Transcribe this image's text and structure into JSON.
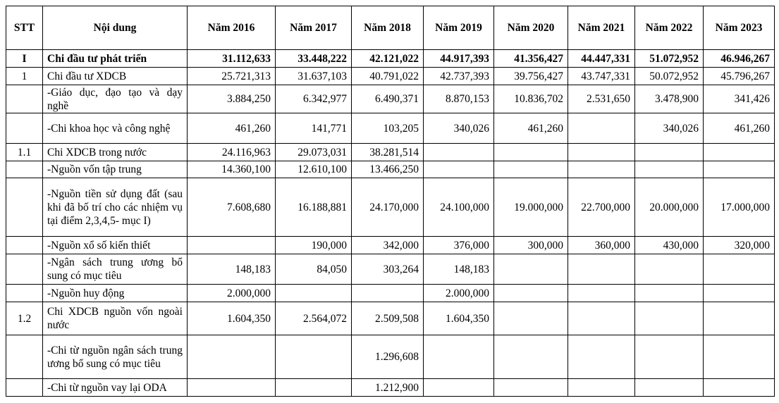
{
  "table": {
    "header": [
      "STT",
      "Nội dung",
      "Năm 2016",
      "Năm 2017",
      "Năm 2018",
      "Năm 2019",
      "Năm 2020",
      "Năm 2021",
      "Năm 2022",
      "Năm 2023"
    ],
    "rows": [
      [
        "I",
        "Chi đầu tư phát triển",
        "31.112,633",
        "33.448,222",
        "42.121,022",
        "44.917,393",
        "41.356,427",
        "44.447,331",
        "51.072,952",
        "46.946,267"
      ],
      [
        "1",
        "Chi đầu tư XDCB",
        "25.721,313",
        "31.637,103",
        "40.791,022",
        "42.737,393",
        "39.756,427",
        "43.747,331",
        "50.072,952",
        "45.796,267"
      ],
      [
        null,
        "-Giáo dục, đạo tạo và dạy nghề",
        "3.884,250",
        "6.342,977",
        "6.490,371",
        "8.870,153",
        "10.836,702",
        "2.531,650",
        "3.478,900",
        "341,426"
      ],
      [
        null,
        "-Chi khoa học và công nghệ",
        "461,260",
        "141,771",
        "103,205",
        "340,026",
        "461,260",
        null,
        "340,026",
        "461,260"
      ],
      [
        "1.1",
        "Chi XDCB trong nước",
        "24.116,963",
        "29.073,031",
        "38.281,514",
        null,
        null,
        null,
        null,
        null
      ],
      [
        null,
        "-Nguồn vốn tập trung",
        "14.360,100",
        "12.610,100",
        "13.466,250",
        null,
        null,
        null,
        null,
        null
      ],
      [
        null,
        "-Nguồn tiền sử dụng đất (sau khi đã bố trí cho các nhiệm vụ tại điểm 2,3,4,5- mục I)",
        "7.608,680",
        "16.188,881",
        "24.170,000",
        "24.100,000",
        "19.000,000",
        "22.700,000",
        "20.000,000",
        "17.000,000"
      ],
      [
        null,
        "-Nguồn xổ số kiến thiết",
        null,
        "190,000",
        "342,000",
        "376,000",
        "300,000",
        "360,000",
        "430,000",
        "320,000"
      ],
      [
        null,
        "-Ngân sách trung ương bổ sung có mục tiêu",
        "148,183",
        "84,050",
        "303,264",
        "148,183",
        null,
        null,
        null,
        null
      ],
      [
        null,
        "-Nguồn huy động",
        "2.000,000",
        null,
        null,
        "2.000,000",
        null,
        null,
        null,
        null
      ],
      [
        "1.2",
        "Chi XDCB nguồn vốn ngoài nước",
        "1.604,350",
        "2.564,072",
        "2.509,508",
        "1.604,350",
        null,
        null,
        null,
        null
      ],
      [
        null,
        "-Chi từ nguồn ngân sách trung ương bổ sung có mục tiêu",
        null,
        null,
        "1.296,608",
        null,
        null,
        null,
        null,
        null
      ],
      [
        null,
        "-Chi từ nguồn vay lại ODA",
        null,
        null,
        "1.212,900",
        null,
        null,
        null,
        null,
        null
      ]
    ]
  }
}
